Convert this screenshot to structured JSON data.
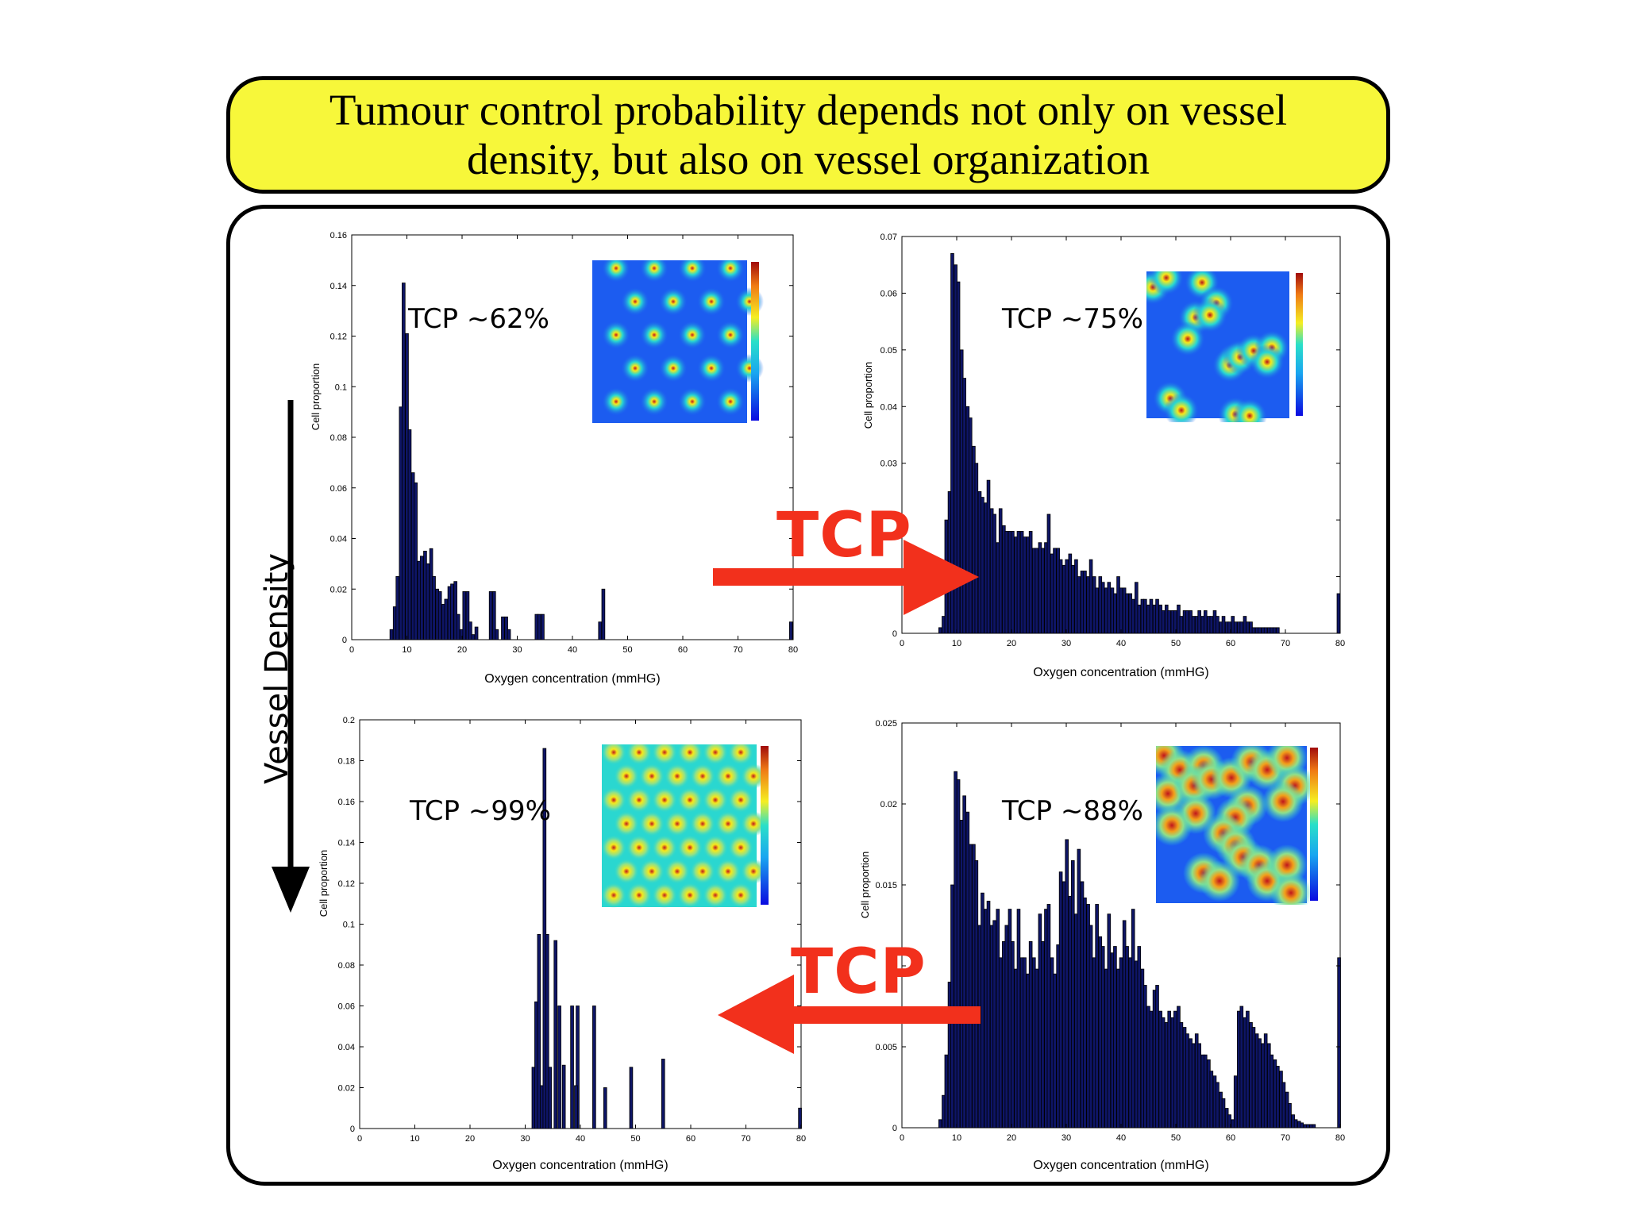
{
  "title": "Tumour control probability depends not only on vessel density, but also on vessel organization",
  "side_label": "Vessel Density",
  "arrow_word": "TCP",
  "colors": {
    "bar": "#0e1566",
    "bar_edge": "#000000",
    "tcp_arrow": "#f2301c",
    "title_bg": "#f7f73a"
  },
  "chart_data": [
    {
      "type": "bar",
      "panel": "top-left",
      "annotation": "TCP ~62%",
      "xlabel": "Oxygen concentration (mmHG)",
      "ylabel": "Cell proportion",
      "xlim": [
        0,
        80
      ],
      "ylim": [
        0,
        0.16
      ],
      "xticks": [
        0,
        10,
        20,
        30,
        40,
        50,
        60,
        70,
        80
      ],
      "yticks": [
        0,
        0.02,
        0.04,
        0.06,
        0.08,
        0.1,
        0.12,
        0.14,
        0.16
      ],
      "ytick_labels": [
        "0",
        "0.02",
        "0.04",
        "0.06",
        "0.08",
        "0.1",
        "0.12",
        "0.14",
        "0.16"
      ],
      "bin_width": 0.55,
      "x": [
        7.2,
        7.8,
        8.3,
        8.9,
        9.4,
        10.0,
        10.5,
        11.1,
        11.6,
        12.2,
        12.7,
        13.3,
        13.8,
        14.4,
        14.9,
        15.5,
        16.0,
        16.6,
        17.1,
        17.7,
        18.2,
        18.8,
        19.3,
        19.9,
        20.4,
        21.0,
        21.5,
        22.0,
        22.6,
        25.2,
        25.8,
        26.3,
        27.4,
        28.0,
        28.5,
        33.5,
        34.0,
        34.6,
        45.0,
        45.6,
        79.6
      ],
      "values": [
        0.004,
        0.013,
        0.025,
        0.092,
        0.141,
        0.121,
        0.083,
        0.066,
        0.062,
        0.031,
        0.033,
        0.035,
        0.03,
        0.036,
        0.025,
        0.02,
        0.019,
        0.014,
        0.016,
        0.021,
        0.022,
        0.023,
        0.01,
        0.004,
        0.019,
        0.019,
        0.007,
        0.002,
        0.005,
        0.019,
        0.019,
        0.004,
        0.009,
        0.009,
        0.004,
        0.01,
        0.01,
        0.01,
        0.007,
        0.02,
        0.007
      ]
    },
    {
      "type": "bar",
      "panel": "top-right",
      "annotation": "TCP ~75%",
      "xlabel": "Oxygen concentration (mmHG)",
      "ylabel": "Cell proportion",
      "xlim": [
        0,
        80
      ],
      "ylim": [
        0,
        0.07
      ],
      "xticks": [
        0,
        10,
        20,
        30,
        40,
        50,
        60,
        70,
        80
      ],
      "yticks": [
        0,
        0.01,
        0.02,
        0.03,
        0.04,
        0.05,
        0.06,
        0.07
      ],
      "ytick_labels": [
        "0",
        "",
        "",
        "0.03",
        "0.04",
        "0.05",
        "0.06",
        "0.07"
      ],
      "bin_width": 0.55,
      "x": [
        7.0,
        7.6,
        8.1,
        8.7,
        9.2,
        9.8,
        10.3,
        10.9,
        11.4,
        12.0,
        12.5,
        13.1,
        13.6,
        14.2,
        14.7,
        15.3,
        15.8,
        16.4,
        16.9,
        17.5,
        18.0,
        18.6,
        19.1,
        19.7,
        20.2,
        20.8,
        21.3,
        21.9,
        22.4,
        23.0,
        23.5,
        24.1,
        24.6,
        25.2,
        25.7,
        26.3,
        26.8,
        27.4,
        27.9,
        28.5,
        29.0,
        29.6,
        30.1,
        30.7,
        31.2,
        31.8,
        32.3,
        32.9,
        33.4,
        34.0,
        34.5,
        35.1,
        35.6,
        36.2,
        36.7,
        37.3,
        37.8,
        38.4,
        38.9,
        39.5,
        40.0,
        40.6,
        41.1,
        41.7,
        42.2,
        42.8,
        43.3,
        43.9,
        44.4,
        45.0,
        45.5,
        46.1,
        46.6,
        47.2,
        47.7,
        48.3,
        48.8,
        49.4,
        49.9,
        50.5,
        51.0,
        51.6,
        52.1,
        52.7,
        53.2,
        53.8,
        54.3,
        54.9,
        55.4,
        56.0,
        56.5,
        57.1,
        57.6,
        58.2,
        58.7,
        59.3,
        59.8,
        60.4,
        60.9,
        61.5,
        62.0,
        62.6,
        63.1,
        63.7,
        64.2,
        64.8,
        65.3,
        65.9,
        66.4,
        67.0,
        67.5,
        68.0,
        68.6,
        79.7
      ],
      "values": [
        0.001,
        0.003,
        0.02,
        0.025,
        0.067,
        0.065,
        0.062,
        0.05,
        0.045,
        0.04,
        0.038,
        0.033,
        0.03,
        0.025,
        0.024,
        0.023,
        0.027,
        0.022,
        0.021,
        0.016,
        0.022,
        0.019,
        0.018,
        0.018,
        0.018,
        0.017,
        0.018,
        0.018,
        0.017,
        0.017,
        0.018,
        0.015,
        0.015,
        0.016,
        0.015,
        0.016,
        0.021,
        0.014,
        0.015,
        0.015,
        0.013,
        0.012,
        0.013,
        0.014,
        0.012,
        0.013,
        0.01,
        0.011,
        0.011,
        0.01,
        0.013,
        0.01,
        0.008,
        0.01,
        0.009,
        0.008,
        0.009,
        0.008,
        0.007,
        0.01,
        0.008,
        0.008,
        0.007,
        0.007,
        0.006,
        0.009,
        0.005,
        0.006,
        0.006,
        0.005,
        0.006,
        0.005,
        0.006,
        0.005,
        0.004,
        0.005,
        0.004,
        0.004,
        0.004,
        0.005,
        0.003,
        0.004,
        0.004,
        0.004,
        0.003,
        0.003,
        0.004,
        0.003,
        0.004,
        0.003,
        0.003,
        0.004,
        0.003,
        0.002,
        0.003,
        0.002,
        0.002,
        0.003,
        0.002,
        0.002,
        0.002,
        0.003,
        0.002,
        0.002,
        0.001,
        0.001,
        0.001,
        0.001,
        0.001,
        0.001,
        0.001,
        0.001,
        0.001,
        0.007
      ]
    },
    {
      "type": "bar",
      "panel": "bottom-left",
      "annotation": "TCP ~99%",
      "xlabel": "Oxygen concentration (mmHG)",
      "ylabel": "Cell proportion",
      "xlim": [
        0,
        80
      ],
      "ylim": [
        0,
        0.2
      ],
      "xticks": [
        0,
        10,
        20,
        30,
        40,
        50,
        60,
        70,
        80
      ],
      "yticks": [
        0,
        0.02,
        0.04,
        0.06,
        0.08,
        0.1,
        0.12,
        0.14,
        0.16,
        0.18,
        0.2
      ],
      "ytick_labels": [
        "0",
        "0.02",
        "0.04",
        "0.06",
        "0.08",
        "0.1",
        "0.12",
        "0.14",
        "0.16",
        "0.18",
        "0.2"
      ],
      "bin_width": 0.55,
      "x": [
        31.5,
        32.0,
        32.5,
        33.0,
        33.5,
        34.0,
        34.5,
        35.5,
        36.2,
        37.0,
        38.5,
        39.5,
        39.2,
        42.5,
        44.5,
        49.2,
        55.0,
        79.8
      ],
      "values": [
        0.03,
        0.062,
        0.095,
        0.021,
        0.186,
        0.095,
        0.03,
        0.092,
        0.06,
        0.031,
        0.06,
        0.06,
        0.021,
        0.06,
        0.02,
        0.03,
        0.034,
        0.01
      ]
    },
    {
      "type": "bar",
      "panel": "bottom-right",
      "annotation": "TCP ~88%",
      "xlabel": "Oxygen concentration (mmHG)",
      "ylabel": "Cell proportion",
      "xlim": [
        0,
        80
      ],
      "ylim": [
        0,
        0.025
      ],
      "xticks": [
        0,
        10,
        20,
        30,
        40,
        50,
        60,
        70,
        80
      ],
      "yticks": [
        0,
        0.005,
        0.01,
        0.015,
        0.02,
        0.025
      ],
      "ytick_labels": [
        "0",
        "0.005",
        "",
        "0.015",
        "0.02",
        "0.025"
      ],
      "bin_width": 0.55,
      "x": [
        7.0,
        7.6,
        8.1,
        8.7,
        9.2,
        9.8,
        10.3,
        10.9,
        11.4,
        12.0,
        12.5,
        13.1,
        13.6,
        14.2,
        14.7,
        15.3,
        15.8,
        16.4,
        16.9,
        17.5,
        18.0,
        18.6,
        19.1,
        19.7,
        20.2,
        20.8,
        21.3,
        21.9,
        22.4,
        23.0,
        23.5,
        24.1,
        24.6,
        25.2,
        25.7,
        26.3,
        26.8,
        27.4,
        27.9,
        28.5,
        29.0,
        29.6,
        30.1,
        30.7,
        31.2,
        31.8,
        32.3,
        32.9,
        33.4,
        34.0,
        34.5,
        35.1,
        35.6,
        36.2,
        36.7,
        37.3,
        37.8,
        38.4,
        38.9,
        39.5,
        40.0,
        40.6,
        41.1,
        41.7,
        42.2,
        42.8,
        43.3,
        43.9,
        44.4,
        45.0,
        45.5,
        46.1,
        46.6,
        47.2,
        47.7,
        48.3,
        48.8,
        49.4,
        49.9,
        50.5,
        51.0,
        51.6,
        52.1,
        52.7,
        53.2,
        53.8,
        54.3,
        54.9,
        55.4,
        56.0,
        56.5,
        57.1,
        57.6,
        58.2,
        58.7,
        59.3,
        59.8,
        60.4,
        60.9,
        61.5,
        62.0,
        62.6,
        63.1,
        63.7,
        64.2,
        64.8,
        65.3,
        65.9,
        66.4,
        67.0,
        67.5,
        68.1,
        68.6,
        69.2,
        69.7,
        70.3,
        70.8,
        71.4,
        71.9,
        72.5,
        73.0,
        73.6,
        74.1,
        74.7,
        75.2,
        79.8
      ],
      "values": [
        0.0005,
        0.002,
        0.0045,
        0.009,
        0.015,
        0.022,
        0.0215,
        0.019,
        0.0205,
        0.0195,
        0.0175,
        0.0175,
        0.0165,
        0.0125,
        0.0145,
        0.0135,
        0.014,
        0.0125,
        0.0128,
        0.0135,
        0.0105,
        0.0115,
        0.0125,
        0.0135,
        0.0115,
        0.0098,
        0.0135,
        0.0105,
        0.0105,
        0.0095,
        0.0115,
        0.0105,
        0.0098,
        0.0132,
        0.0115,
        0.0135,
        0.0138,
        0.0105,
        0.0095,
        0.0113,
        0.0158,
        0.0152,
        0.0178,
        0.0143,
        0.0165,
        0.0132,
        0.0172,
        0.0152,
        0.0142,
        0.0138,
        0.0125,
        0.0105,
        0.0138,
        0.0118,
        0.0112,
        0.0098,
        0.0132,
        0.0108,
        0.0112,
        0.0098,
        0.0105,
        0.0128,
        0.0112,
        0.0105,
        0.0135,
        0.0103,
        0.0112,
        0.0098,
        0.0088,
        0.0075,
        0.0072,
        0.0085,
        0.0088,
        0.0072,
        0.0068,
        0.0065,
        0.0072,
        0.0068,
        0.0072,
        0.0075,
        0.0065,
        0.0062,
        0.0058,
        0.0055,
        0.0052,
        0.0058,
        0.0052,
        0.0045,
        0.0045,
        0.0042,
        0.0035,
        0.0032,
        0.0028,
        0.0022,
        0.0018,
        0.0012,
        0.0008,
        0.0005,
        0.0032,
        0.0072,
        0.0075,
        0.0068,
        0.0072,
        0.0065,
        0.0062,
        0.0058,
        0.0055,
        0.0052,
        0.0058,
        0.0052,
        0.0045,
        0.0042,
        0.0038,
        0.0035,
        0.0028,
        0.0022,
        0.0015,
        0.0008,
        0.0005,
        0.0004,
        0.0003,
        0.0002,
        0.0002,
        0.0002,
        0.0002,
        0.0105
      ]
    }
  ]
}
